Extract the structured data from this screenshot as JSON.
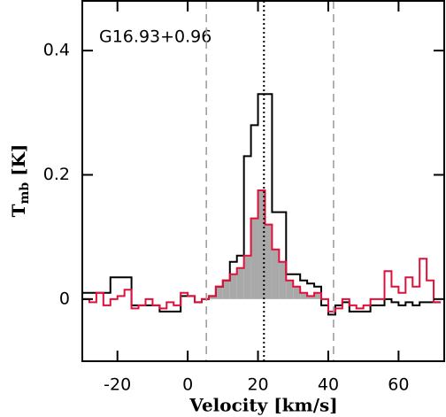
{
  "chart_data": {
    "type": "step",
    "annotation": "G16.93+0.96",
    "xlabel": "Velocity [km/s]",
    "ylabel": [
      "T",
      "mb",
      " [K]"
    ],
    "x": [
      -29,
      -27,
      -25,
      -23,
      -21,
      -19,
      -17,
      -15,
      -13,
      -11,
      -9,
      -7,
      -5,
      -3,
      -1,
      1,
      3,
      5,
      7,
      9,
      11,
      13,
      15,
      17,
      19,
      21,
      23,
      25,
      27,
      29,
      31,
      33,
      35,
      37,
      39,
      41,
      43,
      45,
      47,
      49,
      51,
      53,
      55,
      57,
      59,
      61,
      63,
      65,
      67,
      69,
      71
    ],
    "series": [
      {
        "color": "#000000",
        "values": [
          0.01,
          0.01,
          0.01,
          0.01,
          0.035,
          0.035,
          0.035,
          -0.01,
          -0.01,
          -0.01,
          -0.01,
          -0.02,
          -0.02,
          -0.02,
          0.005,
          0.005,
          -0.005,
          0.0,
          0.005,
          0.02,
          0.03,
          0.06,
          0.07,
          0.23,
          0.28,
          0.33,
          0.33,
          0.14,
          0.14,
          0.04,
          0.04,
          0.03,
          0.025,
          0.02,
          -0.01,
          -0.025,
          -0.01,
          -0.005,
          -0.02,
          -0.02,
          -0.02,
          -0.01,
          -0.01,
          0.0,
          -0.005,
          -0.01,
          -0.005,
          -0.01,
          -0.005,
          -0.005,
          -0.005
        ]
      },
      {
        "color": "#e0103a",
        "fill": "#a9a9a9",
        "values": [
          0.0,
          -0.005,
          0.01,
          -0.01,
          0.0,
          0.005,
          0.015,
          -0.015,
          -0.01,
          0.0,
          -0.01,
          -0.015,
          -0.005,
          -0.01,
          0.01,
          0.005,
          -0.005,
          0.0,
          0.005,
          0.02,
          0.03,
          0.04,
          0.05,
          0.07,
          0.13,
          0.175,
          0.12,
          0.08,
          0.06,
          0.03,
          0.02,
          0.01,
          0.005,
          0.01,
          0.0,
          -0.02,
          -0.015,
          0.0,
          -0.01,
          -0.015,
          -0.01,
          0.0,
          0.0,
          0.045,
          0.02,
          0.01,
          0.035,
          0.02,
          0.065,
          0.03,
          -0.005
        ]
      }
    ],
    "vlines_dashed": [
      5.3,
      41.5
    ],
    "vline_dotted": 21.7,
    "xlim": [
      -30,
      73
    ],
    "ylim": [
      -0.1,
      0.48
    ],
    "xticks": [
      -20,
      0,
      20,
      40,
      60
    ],
    "yticks": [
      0,
      0.2,
      0.4
    ]
  }
}
